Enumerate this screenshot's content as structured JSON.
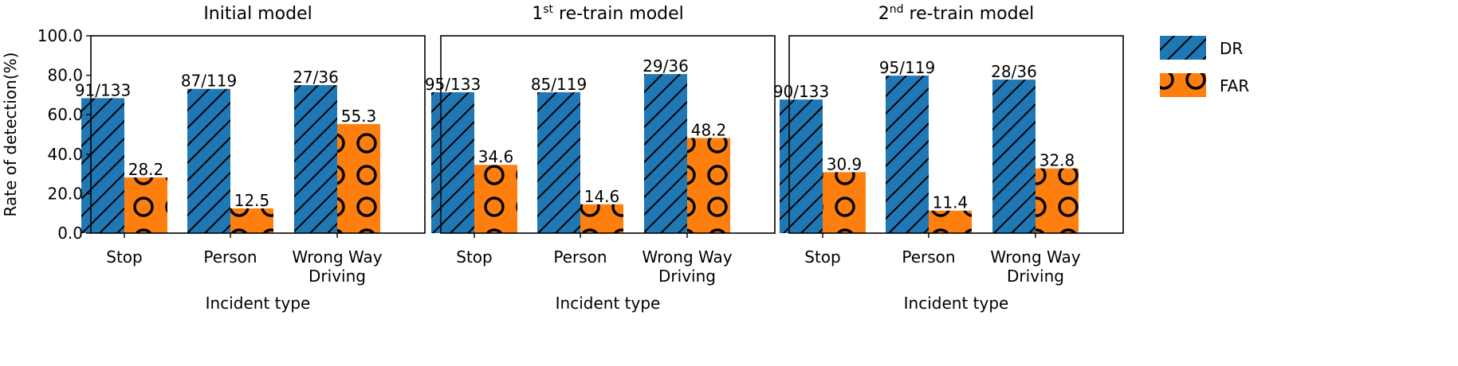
{
  "chart_data": [
    {
      "type": "bar",
      "title_main": "Initial model",
      "title_sup": "",
      "title_rest": "",
      "xlabel": "Incident type",
      "ylabel": "Rate of detection(%)",
      "ylim": [
        0,
        100
      ],
      "yticks": [
        "0.0",
        "20.0",
        "40.0",
        "60.0",
        "80.0",
        "100.0"
      ],
      "categories": [
        [
          "Stop"
        ],
        [
          "Person"
        ],
        [
          "Wrong Way",
          "Driving"
        ]
      ],
      "series": [
        {
          "name": "DR",
          "values": [
            68.4,
            73.1,
            75.0
          ],
          "labels": [
            "91/133",
            "87/119",
            "27/36"
          ]
        },
        {
          "name": "FAR",
          "values": [
            28.2,
            12.5,
            55.3
          ],
          "labels": [
            "28.2",
            "12.5",
            "55.3"
          ]
        }
      ]
    },
    {
      "type": "bar",
      "title_main": "1",
      "title_sup": "st",
      "title_rest": " re-train model",
      "xlabel": "Incident type",
      "categories": [
        [
          "Stop"
        ],
        [
          "Person"
        ],
        [
          "Wrong Way",
          "Driving"
        ]
      ],
      "ylim": [
        0,
        100
      ],
      "series": [
        {
          "name": "DR",
          "values": [
            71.4,
            71.4,
            80.6
          ],
          "labels": [
            "95/133",
            "85/119",
            "29/36"
          ]
        },
        {
          "name": "FAR",
          "values": [
            34.6,
            14.6,
            48.2
          ],
          "labels": [
            "34.6",
            "14.6",
            "48.2"
          ]
        }
      ]
    },
    {
      "type": "bar",
      "title_main": "2",
      "title_sup": "nd",
      "title_rest": " re-train model",
      "xlabel": "Incident type",
      "categories": [
        [
          "Stop"
        ],
        [
          "Person"
        ],
        [
          "Wrong Way",
          "Driving"
        ]
      ],
      "ylim": [
        0,
        100
      ],
      "series": [
        {
          "name": "DR",
          "values": [
            67.7,
            79.8,
            77.8
          ],
          "labels": [
            "90/133",
            "95/119",
            "28/36"
          ]
        },
        {
          "name": "FAR",
          "values": [
            30.9,
            11.4,
            32.8
          ],
          "labels": [
            "30.9",
            "11.4",
            "32.8"
          ]
        }
      ]
    }
  ],
  "legend": {
    "placement": "right",
    "items": [
      {
        "name": "DR",
        "color": "#1f77b4",
        "hatch": "diagonal-lines"
      },
      {
        "name": "FAR",
        "color": "#ff7f0e",
        "hatch": "circles"
      }
    ]
  }
}
